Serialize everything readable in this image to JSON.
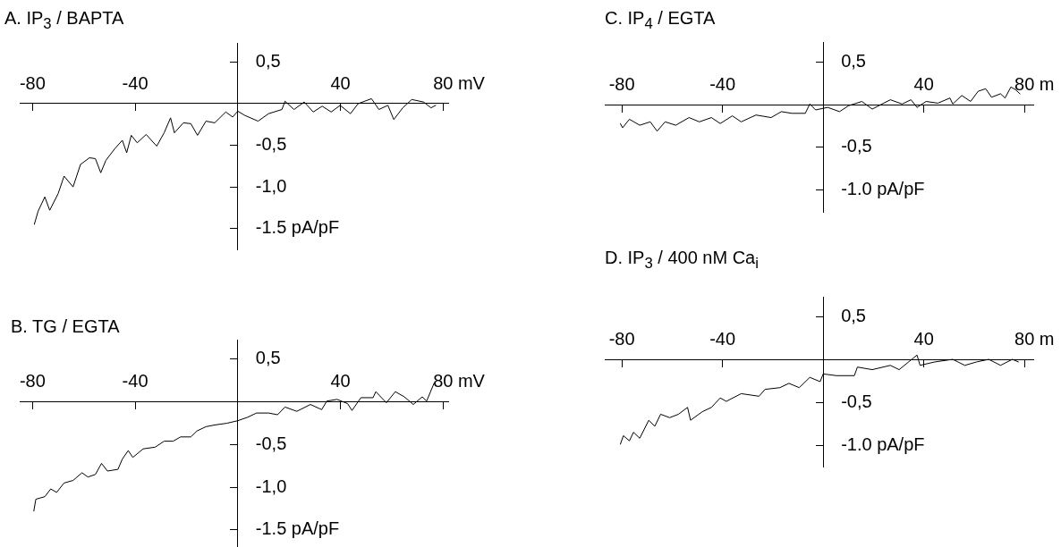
{
  "chart_data": [
    {
      "type": "line",
      "title": "A. IP$_{3}$ / BAPTA",
      "color": "#000000",
      "x": [
        -79.3,
        -77.8,
        -75.2,
        -73.3,
        -70,
        -67.7,
        -64.2,
        -61.3,
        -57.8,
        -55.5,
        -53.4,
        -51.4,
        -47.9,
        -45,
        -43.3,
        -41.5,
        -39.2,
        -35.7,
        -31.6,
        -28.7,
        -26.2,
        -24.7,
        -21.2,
        -18.3,
        -15.7,
        -12.4,
        -9,
        -4.7,
        -2,
        0,
        2.7,
        7.9,
        12,
        17.2,
        18.4,
        21.9,
        25.9,
        29.4,
        32.9,
        36.4,
        39.9,
        43.9,
        46.9,
        52.1,
        55,
        58.5,
        60.8,
        64.3,
        67.8,
        72.4,
        75.3,
        77.1
      ],
      "values": [
        -1.45,
        -1.29,
        -1.12,
        -1.28,
        -1.08,
        -0.87,
        -1.0,
        -0.73,
        -0.65,
        -0.66,
        -0.83,
        -0.68,
        -0.54,
        -0.44,
        -0.59,
        -0.38,
        -0.47,
        -0.37,
        -0.51,
        -0.35,
        -0.17,
        -0.35,
        -0.23,
        -0.24,
        -0.38,
        -0.21,
        -0.23,
        -0.1,
        -0.16,
        -0.09,
        -0.14,
        -0.21,
        -0.12,
        -0.07,
        0.03,
        -0.07,
        0.02,
        -0.1,
        -0.03,
        -0.1,
        -0.02,
        -0.12,
        0,
        0.06,
        -0.07,
        -0.02,
        -0.19,
        -0.05,
        0.05,
        0.02,
        -0.05,
        -0.02
      ],
      "xlim": [
        -85,
        82
      ],
      "ylim": [
        -1.75,
        0.73
      ],
      "xlabel": "mV",
      "xticks": [
        -80,
        -40,
        40,
        80
      ],
      "yticks": [
        {
          "value": 0.5,
          "label": "0,5"
        },
        {
          "value": -0.5,
          "label": "-0,5"
        },
        {
          "value": -1,
          "label": "-1,0"
        },
        {
          "value": -1.5,
          "label": "-1.5 pA/pF"
        }
      ]
    },
    {
      "type": "line",
      "title": "B. TG / EGTA",
      "color": "#000000",
      "x": [
        -79.5,
        -78.7,
        -75.2,
        -72.9,
        -70.6,
        -67.7,
        -64.2,
        -60.7,
        -58.4,
        -55.5,
        -53.1,
        -50.8,
        -46.7,
        -45,
        -42.7,
        -40.9,
        -36.9,
        -32.2,
        -28.7,
        -25.2,
        -22.3,
        -18.3,
        -15.9,
        -12.4,
        -9,
        -4.3,
        0,
        3.8,
        7.3,
        12,
        15.5,
        18.4,
        23,
        28.3,
        32.7,
        34.7,
        38.7,
        42.8,
        44.5,
        48,
        52.7,
        53.8,
        57.9,
        61.4,
        64.9,
        68.4,
        71.9,
        73.6,
        76.5
      ],
      "values": [
        -1.28,
        -1.14,
        -1.11,
        -1.02,
        -1.06,
        -0.95,
        -0.92,
        -0.83,
        -0.88,
        -0.85,
        -0.72,
        -0.81,
        -0.79,
        -0.67,
        -0.57,
        -0.65,
        -0.55,
        -0.53,
        -0.46,
        -0.46,
        -0.41,
        -0.41,
        -0.34,
        -0.29,
        -0.27,
        -0.25,
        -0.22,
        -0.18,
        -0.13,
        -0.13,
        -0.15,
        -0.06,
        -0.11,
        -0.03,
        -0.09,
        0.01,
        0.03,
        -0.02,
        -0.1,
        0.05,
        0.05,
        0.12,
        -0.01,
        0.12,
        0.06,
        -0.03,
        0.06,
        0.01,
        0.22
      ],
      "xlim": [
        -85,
        82
      ],
      "ylim": [
        -1.7,
        0.73
      ],
      "xlabel": "mV",
      "xticks": [
        -80,
        -40,
        40,
        80
      ],
      "yticks": [
        {
          "value": 0.5,
          "label": "0,5"
        },
        {
          "value": -0.5,
          "label": "-0,5"
        },
        {
          "value": -1,
          "label": "-1,0"
        },
        {
          "value": -1.5,
          "label": "-1.5 pA/pF"
        }
      ]
    },
    {
      "type": "line",
      "title": "C. IP$_{4}$ / EGTA",
      "color": "#000000",
      "x": [
        -80.6,
        -79.7,
        -77,
        -72.9,
        -68.7,
        -66,
        -62.8,
        -58.6,
        -53.3,
        -49.2,
        -44.4,
        -40.9,
        -36.1,
        -32.6,
        -26.7,
        -20.7,
        -16.6,
        -12.4,
        -7.1,
        -5.3,
        -3,
        1.8,
        6.5,
        10.1,
        15.4,
        19.5,
        26.7,
        31.4,
        34.9,
        37.3,
        40.9,
        45.6,
        50.4,
        51.5,
        55.1,
        58.6,
        61.6,
        64.6,
        66.9,
        70.5,
        72.3,
        74.6,
        76.4,
        78.2
      ],
      "values": [
        -0.22,
        -0.27,
        -0.17,
        -0.24,
        -0.2,
        -0.31,
        -0.2,
        -0.24,
        -0.15,
        -0.2,
        -0.15,
        -0.22,
        -0.13,
        -0.2,
        -0.12,
        -0.15,
        -0.08,
        -0.1,
        -0.1,
        0.01,
        -0.06,
        -0.03,
        -0.08,
        -0.01,
        0.04,
        -0.05,
        0.06,
        0.01,
        0.06,
        -0.03,
        0.04,
        0.02,
        0.08,
        0.01,
        0.11,
        0.04,
        0.16,
        0.19,
        0.09,
        0.13,
        0.08,
        0.21,
        0.18,
        0.13
      ],
      "xlim": [
        -86.8,
        83.5
      ],
      "ylim": [
        -1.26,
        0.74
      ],
      "xlabel": "m",
      "xticks": [
        -80,
        -40,
        40,
        80
      ],
      "yticks": [
        {
          "value": 0.5,
          "label": "0,5"
        },
        {
          "value": -0.5,
          "label": "-0,5"
        },
        {
          "value": -1,
          "label": "-1.0 pA/pF"
        }
      ]
    },
    {
      "type": "line",
      "title": "D. IP$_{3}$ / 400 nM Ca$_{i}$",
      "color": "#000000",
      "x": [
        -80.6,
        -79.4,
        -77,
        -75.4,
        -72.9,
        -69.3,
        -66.9,
        -64.6,
        -61,
        -57.5,
        -53.9,
        -52.7,
        -48,
        -44.4,
        -40.9,
        -38.5,
        -32.6,
        -25.5,
        -23.1,
        -17.2,
        -13.6,
        -9.5,
        -5.3,
        -1.2,
        0,
        5.3,
        12.4,
        13.6,
        19.5,
        26.7,
        30.2,
        37.3,
        38.5,
        44.4,
        51.5,
        56.3,
        61,
        65.8,
        70.5,
        75.2,
        77.6
      ],
      "values": [
        -0.99,
        -0.89,
        -0.95,
        -0.85,
        -0.92,
        -0.71,
        -0.78,
        -0.64,
        -0.68,
        -0.64,
        -0.56,
        -0.71,
        -0.61,
        -0.56,
        -0.45,
        -0.49,
        -0.4,
        -0.43,
        -0.35,
        -0.33,
        -0.28,
        -0.33,
        -0.21,
        -0.26,
        -0.17,
        -0.19,
        -0.19,
        -0.09,
        -0.12,
        -0.07,
        -0.12,
        0.05,
        -0.07,
        -0.03,
        0,
        -0.07,
        -0.03,
        0,
        -0.07,
        0,
        -0.03
      ],
      "xlim": [
        -86.8,
        83.5
      ],
      "ylim": [
        -1.25,
        0.73
      ],
      "xlabel": "m",
      "xticks": [
        -80,
        -40,
        40,
        80
      ],
      "yticks": [
        {
          "value": 0.5,
          "label": "0,5"
        },
        {
          "value": -0.5,
          "label": "-0,5"
        },
        {
          "value": -1,
          "label": "-1.0 pA/pF"
        }
      ]
    }
  ]
}
